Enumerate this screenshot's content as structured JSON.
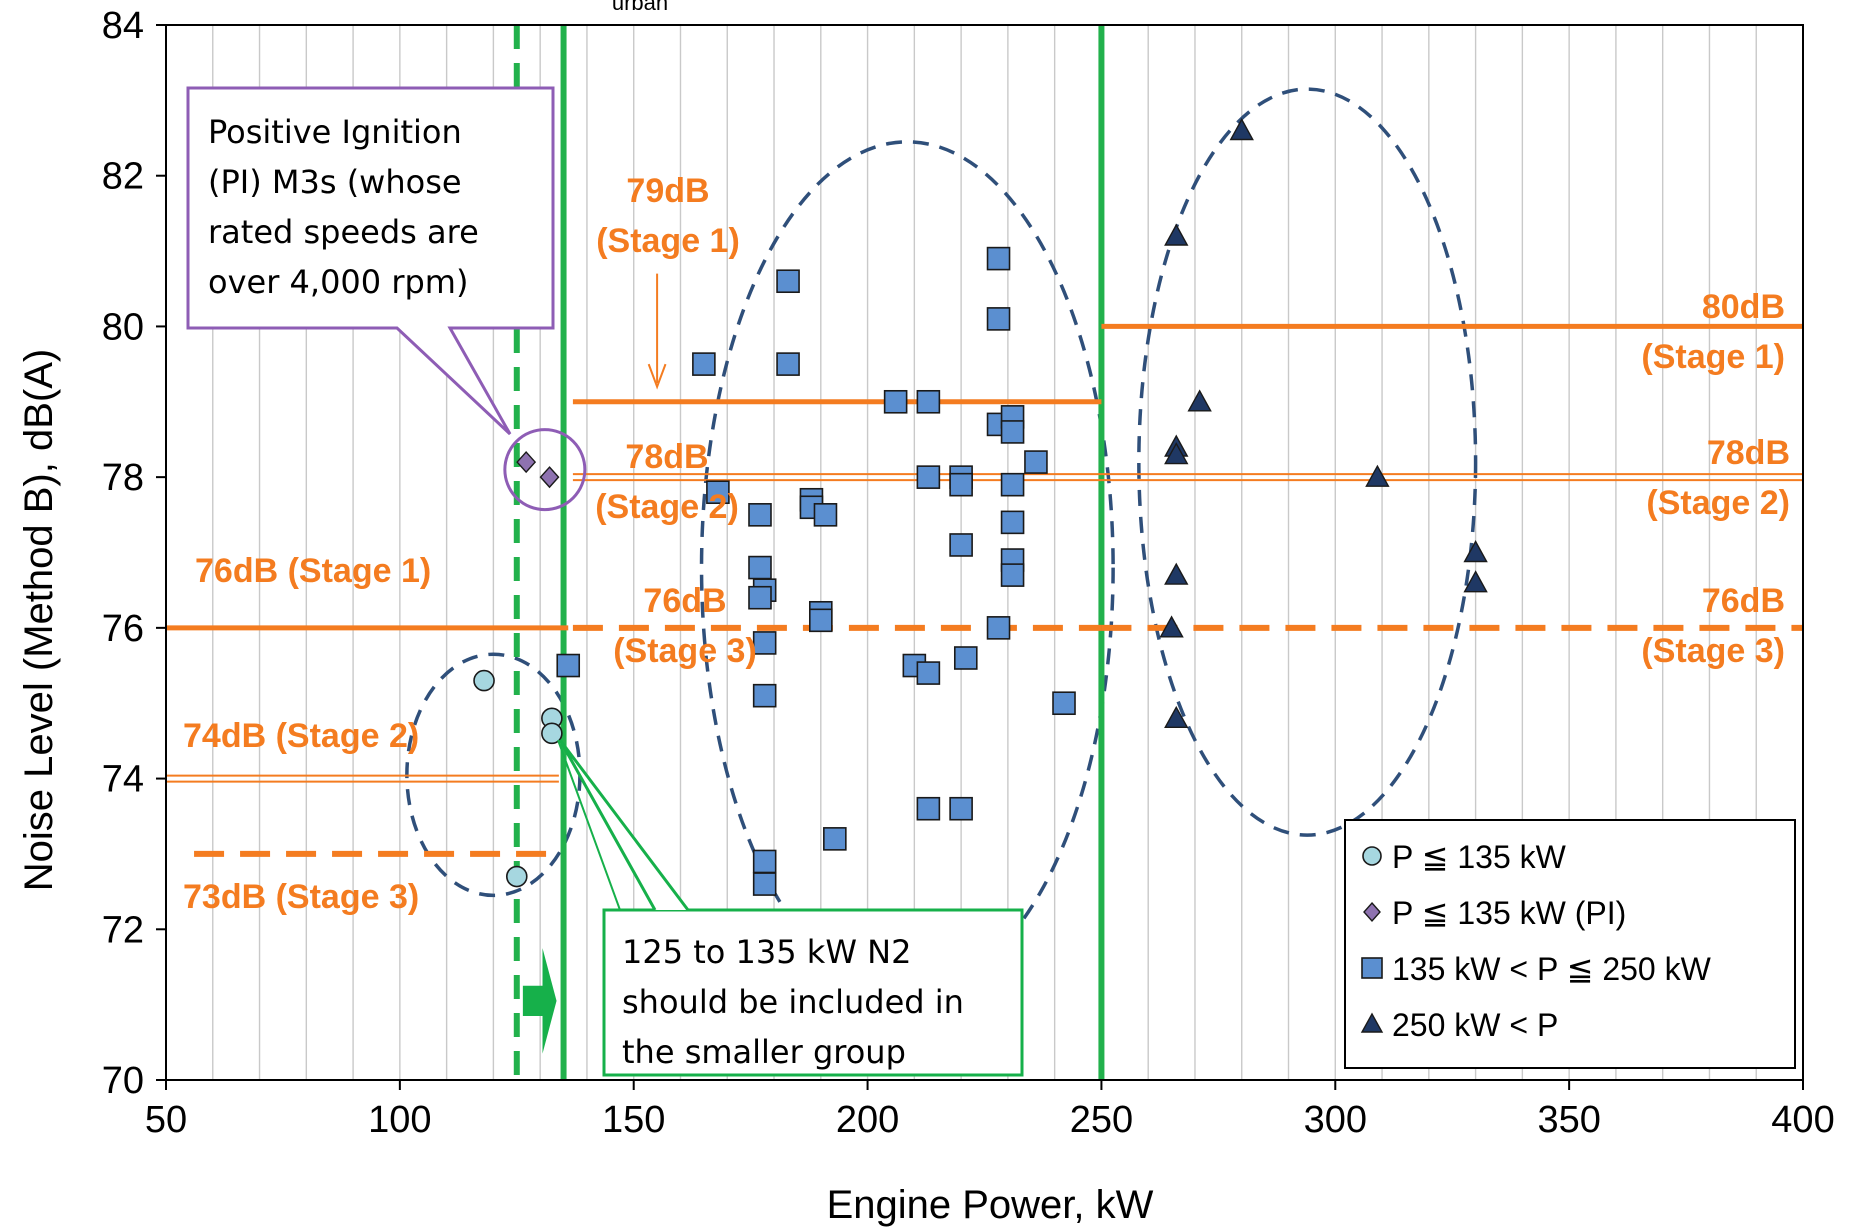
{
  "chart_data": {
    "type": "scatter",
    "title": "",
    "xlabel": "Engine Power, kW",
    "ylabel": "Noise Level (Method B), dB(A)",
    "top_fragment": "urban",
    "xlim": [
      50,
      400
    ],
    "ylim": [
      70,
      84
    ],
    "x_ticks": [
      "50",
      "100",
      "150",
      "200",
      "250",
      "300",
      "350",
      "400"
    ],
    "y_ticks": [
      "70",
      "72",
      "74",
      "76",
      "78",
      "80",
      "82",
      "84"
    ],
    "grid": "vertical minor lines every 10 kW",
    "legend_position": "bottom-right",
    "series": [
      {
        "name": "P ≦ 135 kW",
        "marker": "circle",
        "color": "#a6d7e0",
        "points": [
          [
            118,
            75.3
          ],
          [
            132.5,
            74.8
          ],
          [
            132.5,
            74.6
          ],
          [
            125,
            72.7
          ]
        ]
      },
      {
        "name": "P ≦ 135 kW (PI)",
        "marker": "diamond",
        "color": "#8e72b0",
        "points": [
          [
            127,
            78.2
          ],
          [
            132,
            78.0
          ]
        ]
      },
      {
        "name": "135 kW < P ≦ 250 kW",
        "marker": "square",
        "color": "#5b8fd0",
        "points": [
          [
            136,
            75.5
          ],
          [
            165,
            79.5
          ],
          [
            168,
            77.8
          ],
          [
            177,
            77.5
          ],
          [
            177,
            76.8
          ],
          [
            178,
            76.5
          ],
          [
            177,
            76.4
          ],
          [
            178,
            75.8
          ],
          [
            178,
            75.1
          ],
          [
            178,
            72.9
          ],
          [
            178,
            72.6
          ],
          [
            183,
            80.6
          ],
          [
            183,
            79.5
          ],
          [
            188,
            77.7
          ],
          [
            188,
            77.6
          ],
          [
            191,
            77.5
          ],
          [
            190,
            76.2
          ],
          [
            190,
            76.1
          ],
          [
            193,
            73.2
          ],
          [
            206,
            79.0
          ],
          [
            213,
            79.0
          ],
          [
            213,
            78.0
          ],
          [
            210,
            75.5
          ],
          [
            213,
            75.4
          ],
          [
            213,
            73.6
          ],
          [
            220,
            78.0
          ],
          [
            220,
            77.9
          ],
          [
            220,
            77.1
          ],
          [
            221,
            75.6
          ],
          [
            220,
            73.6
          ],
          [
            228,
            80.9
          ],
          [
            228,
            80.1
          ],
          [
            228,
            78.7
          ],
          [
            231,
            78.8
          ],
          [
            231,
            78.6
          ],
          [
            231,
            77.9
          ],
          [
            231,
            77.4
          ],
          [
            231,
            76.9
          ],
          [
            231,
            76.7
          ],
          [
            228,
            76.0
          ],
          [
            236,
            78.2
          ],
          [
            242,
            75.0
          ]
        ]
      },
      {
        "name": "250 kW < P",
        "marker": "triangle",
        "color": "#1f3864",
        "points": [
          [
            280,
            82.6
          ],
          [
            266,
            81.2
          ],
          [
            271,
            79.0
          ],
          [
            266,
            78.4
          ],
          [
            266,
            78.3
          ],
          [
            266,
            76.7
          ],
          [
            265,
            76.0
          ],
          [
            266,
            74.8
          ],
          [
            309,
            78.0
          ],
          [
            330,
            77.0
          ],
          [
            330,
            76.6
          ]
        ]
      }
    ],
    "limit_lines": [
      {
        "label": "76dB (Stage 1)",
        "y": 76,
        "x_range": [
          50,
          136
        ],
        "style": "solid"
      },
      {
        "label": "74dB (Stage 2)",
        "y": 74,
        "x_range": [
          50,
          134
        ],
        "style": "double"
      },
      {
        "label": "73dB (Stage 3)",
        "y": 73,
        "x_range": [
          56,
          134
        ],
        "style": "dashed"
      },
      {
        "label": "79dB (Stage 1)",
        "y": 79,
        "x_range": [
          137,
          250
        ],
        "style": "solid"
      },
      {
        "label": "78dB (Stage 2)",
        "y": 78,
        "x_range": [
          137,
          250
        ],
        "style": "double"
      },
      {
        "label": "76dB (Stage 3)",
        "y": 76,
        "x_range": [
          137,
          250
        ],
        "style": "dashed"
      },
      {
        "label": "80dB (Stage 1)",
        "y": 80,
        "x_range": [
          250,
          400
        ],
        "style": "solid"
      },
      {
        "label": "78dB (Stage 2)",
        "y": 78,
        "x_range": [
          250,
          400
        ],
        "style": "double"
      },
      {
        "label": "76dB (Stage 3)",
        "y": 76,
        "x_range": [
          250,
          400
        ],
        "style": "dashed"
      }
    ],
    "vertical_lines": [
      {
        "x": 125,
        "style": "dashed"
      },
      {
        "x": 135,
        "style": "solid"
      },
      {
        "x": 250,
        "style": "solid"
      }
    ],
    "callouts": [
      "Positive Ignition (PI) M3s (whose rated speeds are over 4,000 rpm)",
      "125 to 135 kW N2 should be included in the smaller group"
    ],
    "colors": {
      "limit": "#f47c20",
      "divider": "#22b14c",
      "ellipse": "#2f4f7a",
      "pi_callout": "#8e5db5"
    }
  }
}
